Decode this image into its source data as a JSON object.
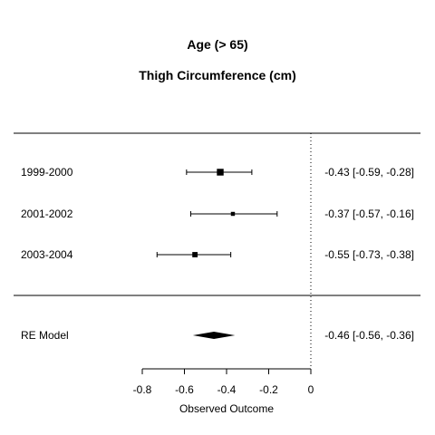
{
  "chart_data": {
    "type": "forest",
    "title": "Age (> 65)",
    "subtitle": "Thigh Circumference (cm)",
    "xlabel": "Observed Outcome",
    "xlim": [
      -0.8,
      0
    ],
    "xticks": [
      -0.8,
      -0.6,
      -0.4,
      -0.2,
      0
    ],
    "xtick_labels": [
      "-0.8",
      "-0.6",
      "-0.4",
      "-0.2",
      "0"
    ],
    "reference_line": 0,
    "studies": [
      {
        "label": "1999-2000",
        "estimate": -0.43,
        "lower": -0.59,
        "upper": -0.28,
        "weight": 0.6,
        "ci_text": "-0.43 [-0.59, -0.28]"
      },
      {
        "label": "2001-2002",
        "estimate": -0.37,
        "lower": -0.57,
        "upper": -0.16,
        "weight": 0.12,
        "ci_text": "-0.37 [-0.57, -0.16]"
      },
      {
        "label": "2003-2004",
        "estimate": -0.55,
        "lower": -0.73,
        "upper": -0.38,
        "weight": 0.3,
        "ci_text": "-0.55 [-0.73, -0.38]"
      }
    ],
    "summary": {
      "label": "RE Model",
      "estimate": -0.46,
      "lower": -0.56,
      "upper": -0.36,
      "ci_text": "-0.46 [-0.56, -0.36]"
    }
  }
}
